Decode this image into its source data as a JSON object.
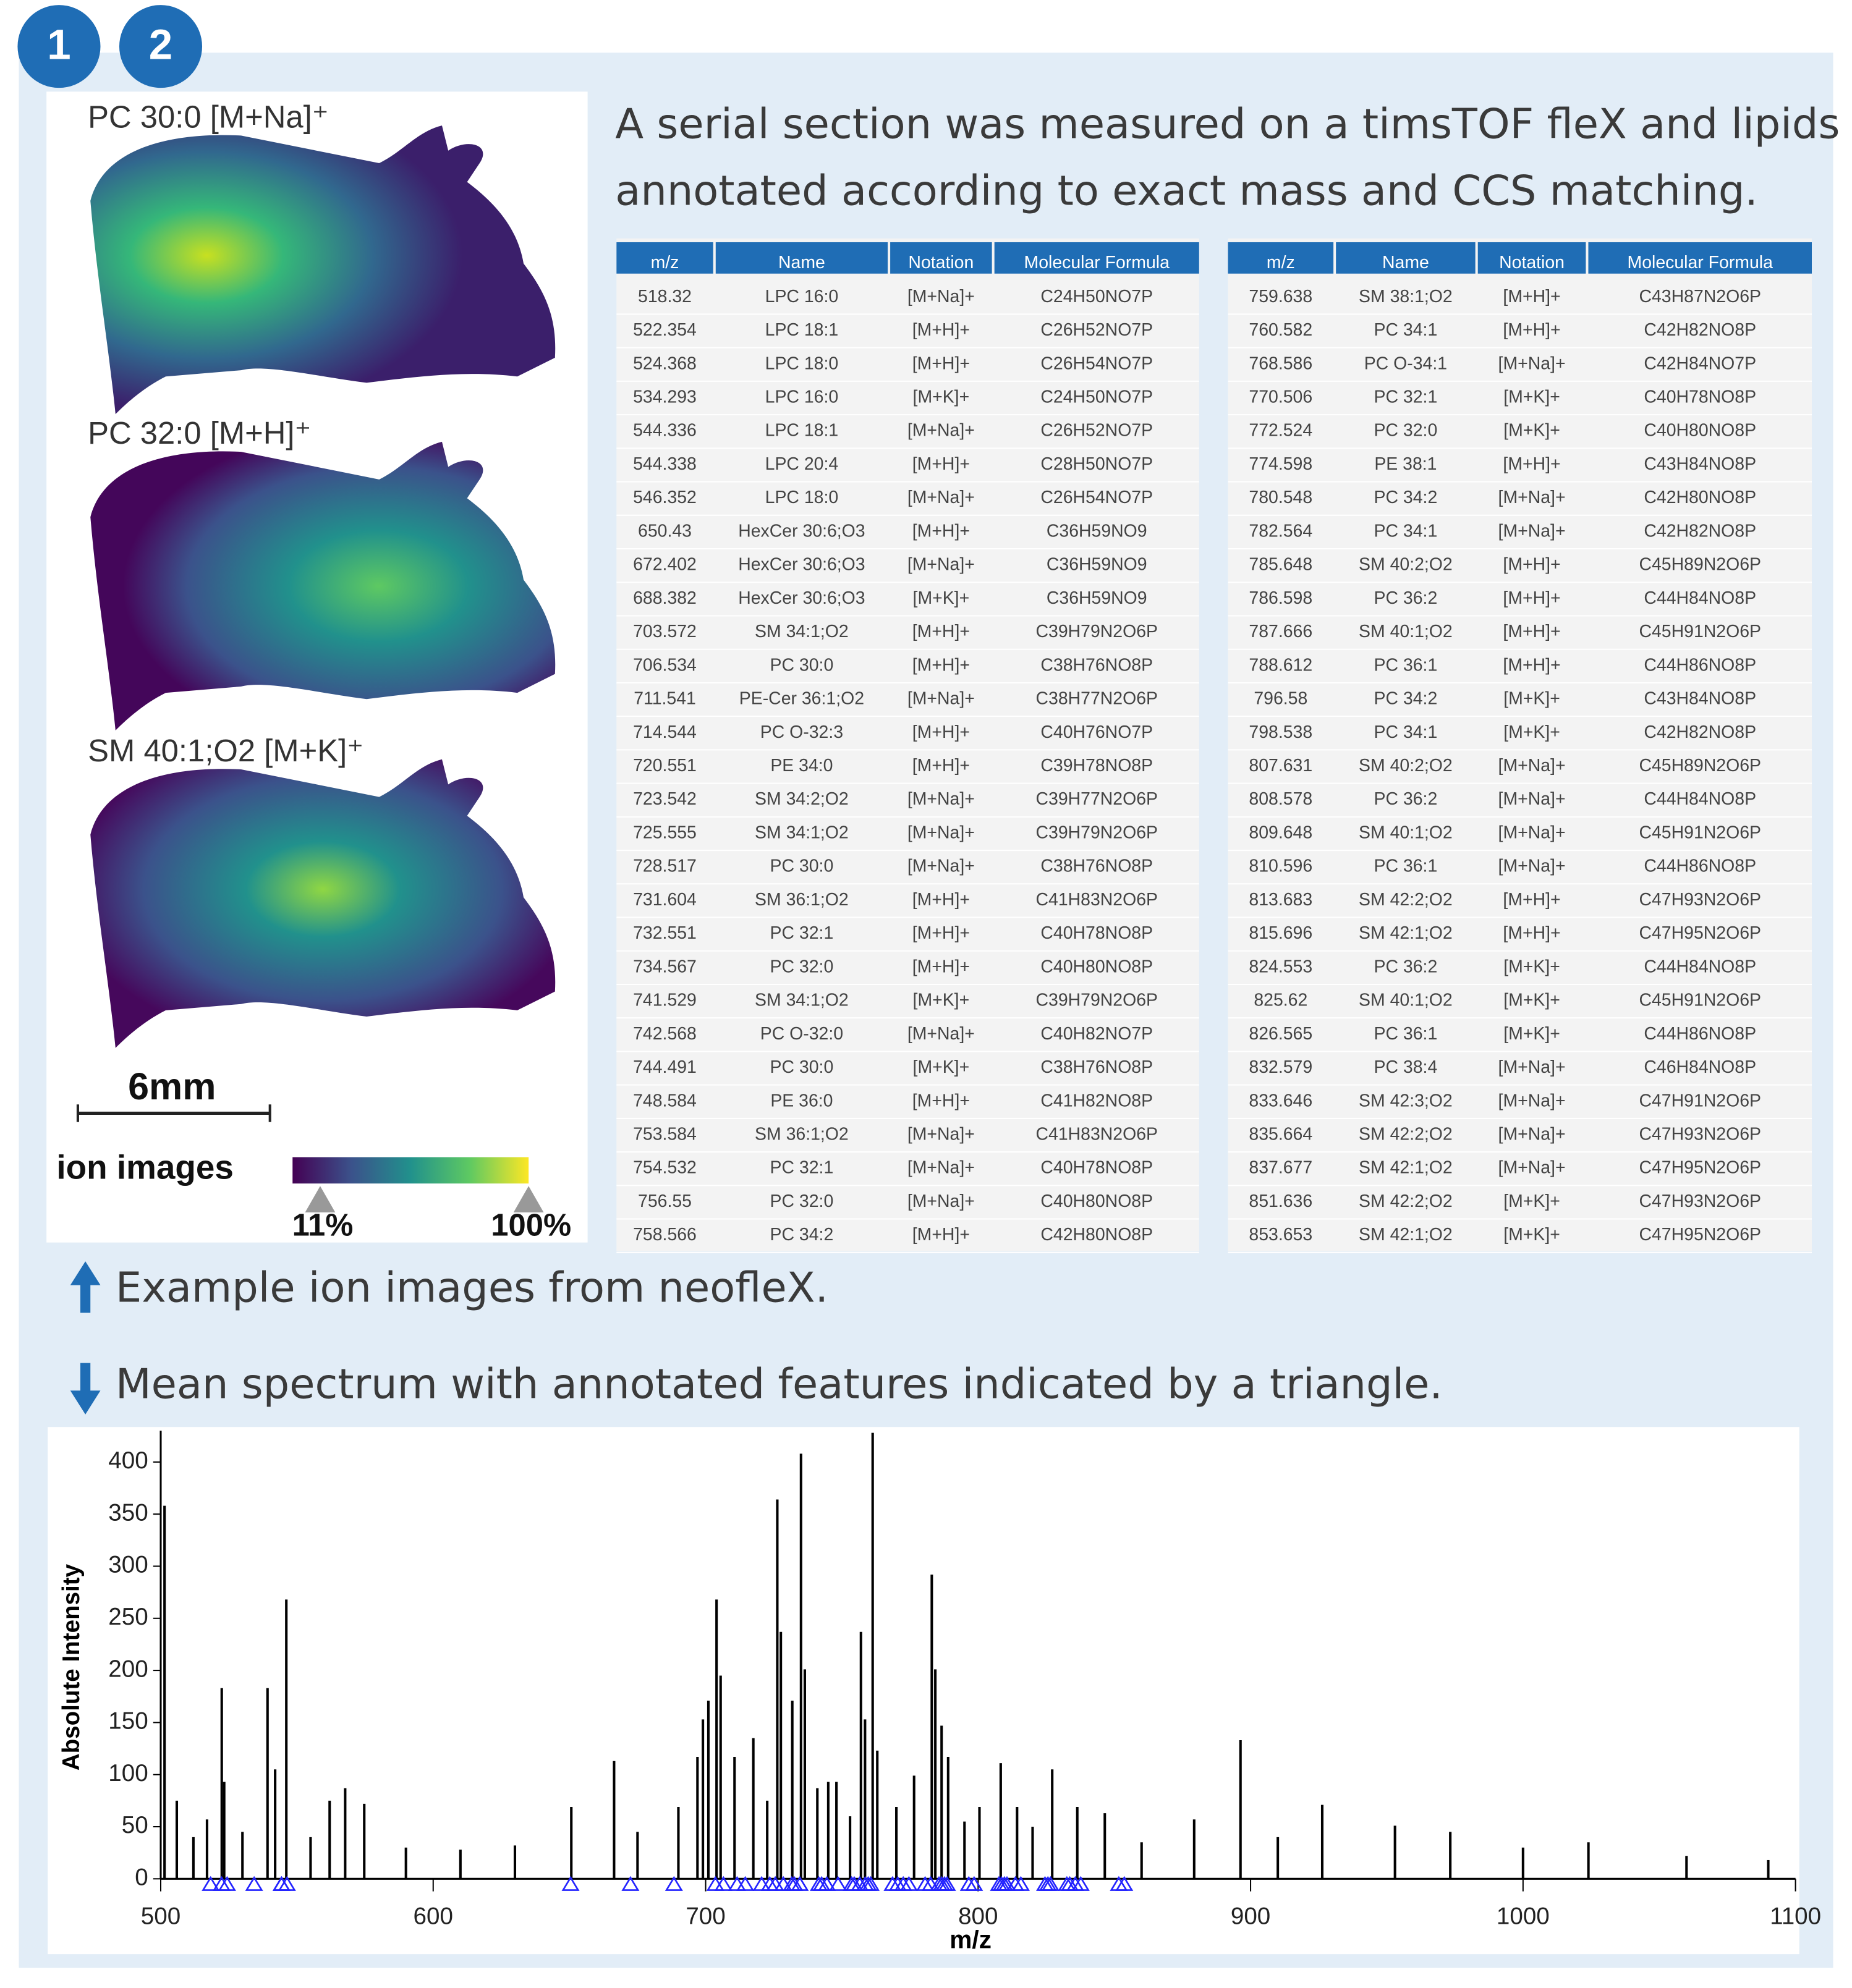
{
  "badges": [
    "1",
    "2"
  ],
  "ion_images": {
    "labels": [
      "PC 30:0 [M+Na]⁺",
      "PC 32:0 [M+H]⁺",
      "SM 40:1;O2 [M+K]⁺"
    ],
    "scale_bar": "6mm",
    "colorbar_title": "ion images",
    "colorbar_min": "11%",
    "colorbar_max": "100%"
  },
  "intro": {
    "lines": [
      "A serial section was measured on a timsTOF fleX and lipids",
      "annotated according to exact mass and CCS matching."
    ]
  },
  "tables": [
    {
      "columns": [
        "m/z",
        "Name",
        "Notation",
        "Molecular Formula"
      ],
      "rows": [
        [
          518.32,
          "LPC 16:0",
          "[M+Na]+",
          "C24H50NO7P"
        ],
        [
          522.354,
          "LPC 18:1",
          "[M+H]+",
          "C26H52NO7P"
        ],
        [
          524.368,
          "LPC 18:0",
          "[M+H]+",
          "C26H54NO7P"
        ],
        [
          534.293,
          "LPC 16:0",
          "[M+K]+",
          "C24H50NO7P"
        ],
        [
          544.336,
          "LPC 18:1",
          "[M+Na]+",
          "C26H52NO7P"
        ],
        [
          544.338,
          "LPC 20:4",
          "[M+H]+",
          "C28H50NO7P"
        ],
        [
          546.352,
          "LPC 18:0",
          "[M+Na]+",
          "C26H54NO7P"
        ],
        [
          650.43,
          "HexCer 30:6;O3",
          "[M+H]+",
          "C36H59NO9"
        ],
        [
          672.402,
          "HexCer 30:6;O3",
          "[M+Na]+",
          "C36H59NO9"
        ],
        [
          688.382,
          "HexCer 30:6;O3",
          "[M+K]+",
          "C36H59NO9"
        ],
        [
          703.572,
          "SM 34:1;O2",
          "[M+H]+",
          "C39H79N2O6P"
        ],
        [
          706.534,
          "PC 30:0",
          "[M+H]+",
          "C38H76NO8P"
        ],
        [
          711.541,
          "PE-Cer 36:1;O2",
          "[M+Na]+",
          "C38H77N2O6P"
        ],
        [
          714.544,
          "PC O-32:3",
          "[M+H]+",
          "C40H76NO7P"
        ],
        [
          720.551,
          "PE 34:0",
          "[M+H]+",
          "C39H78NO8P"
        ],
        [
          723.542,
          "SM 34:2;O2",
          "[M+Na]+",
          "C39H77N2O6P"
        ],
        [
          725.555,
          "SM 34:1;O2",
          "[M+Na]+",
          "C39H79N2O6P"
        ],
        [
          728.517,
          "PC 30:0",
          "[M+Na]+",
          "C38H76NO8P"
        ],
        [
          731.604,
          "SM 36:1;O2",
          "[M+H]+",
          "C41H83N2O6P"
        ],
        [
          732.551,
          "PC 32:1",
          "[M+H]+",
          "C40H78NO8P"
        ],
        [
          734.567,
          "PC 32:0",
          "[M+H]+",
          "C40H80NO8P"
        ],
        [
          741.529,
          "SM 34:1;O2",
          "[M+K]+",
          "C39H79N2O6P"
        ],
        [
          742.568,
          "PC O-32:0",
          "[M+Na]+",
          "C40H82NO7P"
        ],
        [
          744.491,
          "PC 30:0",
          "[M+K]+",
          "C38H76NO8P"
        ],
        [
          748.584,
          "PE 36:0",
          "[M+H]+",
          "C41H82NO8P"
        ],
        [
          753.584,
          "SM 36:1;O2",
          "[M+Na]+",
          "C41H83N2O6P"
        ],
        [
          754.532,
          "PC 32:1",
          "[M+Na]+",
          "C40H78NO8P"
        ],
        [
          756.55,
          "PC 32:0",
          "[M+Na]+",
          "C40H80NO8P"
        ],
        [
          758.566,
          "PC 34:2",
          "[M+H]+",
          "C42H80NO8P"
        ]
      ]
    },
    {
      "columns": [
        "m/z",
        "Name",
        "Notation",
        "Molecular Formula"
      ],
      "rows": [
        [
          759.638,
          "SM 38:1;O2",
          "[M+H]+",
          "C43H87N2O6P"
        ],
        [
          760.582,
          "PC 34:1",
          "[M+H]+",
          "C42H82NO8P"
        ],
        [
          768.586,
          "PC O-34:1",
          "[M+Na]+",
          "C42H84NO7P"
        ],
        [
          770.506,
          "PC 32:1",
          "[M+K]+",
          "C40H78NO8P"
        ],
        [
          772.524,
          "PC 32:0",
          "[M+K]+",
          "C40H80NO8P"
        ],
        [
          774.598,
          "PE 38:1",
          "[M+H]+",
          "C43H84NO8P"
        ],
        [
          780.548,
          "PC 34:2",
          "[M+Na]+",
          "C42H80NO8P"
        ],
        [
          782.564,
          "PC 34:1",
          "[M+Na]+",
          "C42H82NO8P"
        ],
        [
          785.648,
          "SM 40:2;O2",
          "[M+H]+",
          "C45H89N2O6P"
        ],
        [
          786.598,
          "PC 36:2",
          "[M+H]+",
          "C44H84NO8P"
        ],
        [
          787.666,
          "SM 40:1;O2",
          "[M+H]+",
          "C45H91N2O6P"
        ],
        [
          788.612,
          "PC 36:1",
          "[M+H]+",
          "C44H86NO8P"
        ],
        [
          796.58,
          "PC 34:2",
          "[M+K]+",
          "C43H84NO8P"
        ],
        [
          798.538,
          "PC 34:1",
          "[M+K]+",
          "C42H82NO8P"
        ],
        [
          807.631,
          "SM 40:2;O2",
          "[M+Na]+",
          "C45H89N2O6P"
        ],
        [
          808.578,
          "PC 36:2",
          "[M+Na]+",
          "C44H84NO8P"
        ],
        [
          809.648,
          "SM 40:1;O2",
          "[M+Na]+",
          "C45H91N2O6P"
        ],
        [
          810.596,
          "PC 36:1",
          "[M+Na]+",
          "C44H86NO8P"
        ],
        [
          813.683,
          "SM 42:2;O2",
          "[M+H]+",
          "C47H93N2O6P"
        ],
        [
          815.696,
          "SM 42:1;O2",
          "[M+H]+",
          "C47H95N2O6P"
        ],
        [
          824.553,
          "PC 36:2",
          "[M+K]+",
          "C44H84NO8P"
        ],
        [
          825.62,
          "SM 40:1;O2",
          "[M+K]+",
          "C45H91N2O6P"
        ],
        [
          826.565,
          "PC 36:1",
          "[M+K]+",
          "C44H86NO8P"
        ],
        [
          832.579,
          "PC 38:4",
          "[M+Na]+",
          "C46H84NO8P"
        ],
        [
          833.646,
          "SM 42:3;O2",
          "[M+Na]+",
          "C47H91N2O6P"
        ],
        [
          835.664,
          "SM 42:2;O2",
          "[M+Na]+",
          "C47H93N2O6P"
        ],
        [
          837.677,
          "SM 42:1;O2",
          "[M+Na]+",
          "C47H95N2O6P"
        ],
        [
          851.636,
          "SM 42:2;O2",
          "[M+K]+",
          "C47H93N2O6P"
        ],
        [
          853.653,
          "SM 42:1;O2",
          "[M+K]+",
          "C47H95N2O6P"
        ]
      ]
    }
  ],
  "captions": [
    "Example ion images from neofleX.",
    "Mean spectrum with annotated features indicated by a triangle."
  ],
  "chart_data": {
    "type": "stem",
    "xlabel": "m/z",
    "ylabel": "Absolute Intensity",
    "x": [
      501.4,
      505.9,
      512,
      517,
      522.4,
      523.3,
      530,
      539.2,
      542,
      546.1,
      555,
      562,
      567.7,
      574.7,
      590,
      610,
      630,
      650.7,
      666.4,
      675,
      690,
      697,
      699,
      701,
      704,
      705.5,
      710.6,
      717.5,
      722.6,
      726.3,
      727.6,
      731.8,
      735,
      736.4,
      741,
      745,
      748,
      753,
      757,
      758.5,
      761.3,
      763,
      770,
      776.5,
      783,
      784.3,
      786.6,
      789,
      795,
      800.5,
      808.3,
      814.3,
      820,
      827.2,
      836.4,
      846.5,
      860,
      879.3,
      896.3,
      910,
      926.3,
      953,
      973.3,
      1000,
      1024,
      1060,
      1090
    ],
    "values": [
      358,
      75,
      40,
      57,
      183,
      93,
      45,
      183,
      105,
      268,
      40,
      75,
      87,
      72,
      30,
      28,
      32,
      69,
      113,
      45,
      69,
      117,
      153,
      171,
      268,
      195,
      117,
      135,
      75,
      364,
      237,
      171,
      408,
      201,
      87,
      93,
      93,
      60,
      237,
      153,
      428,
      123,
      69,
      99,
      292,
      201,
      147,
      117,
      55,
      69,
      111,
      69,
      50,
      105,
      69,
      63,
      35,
      57,
      133,
      40,
      71,
      51,
      45,
      30,
      35,
      22,
      18
    ],
    "color": "#000000",
    "marker_color": "#2222ff",
    "xlim": [
      500,
      1100
    ],
    "xticks": [
      500,
      600,
      700,
      800,
      900,
      1000,
      1100
    ],
    "ylim": [
      0,
      430
    ],
    "yticks": [
      0,
      50,
      100,
      150,
      200,
      250,
      300,
      350,
      400
    ]
  }
}
